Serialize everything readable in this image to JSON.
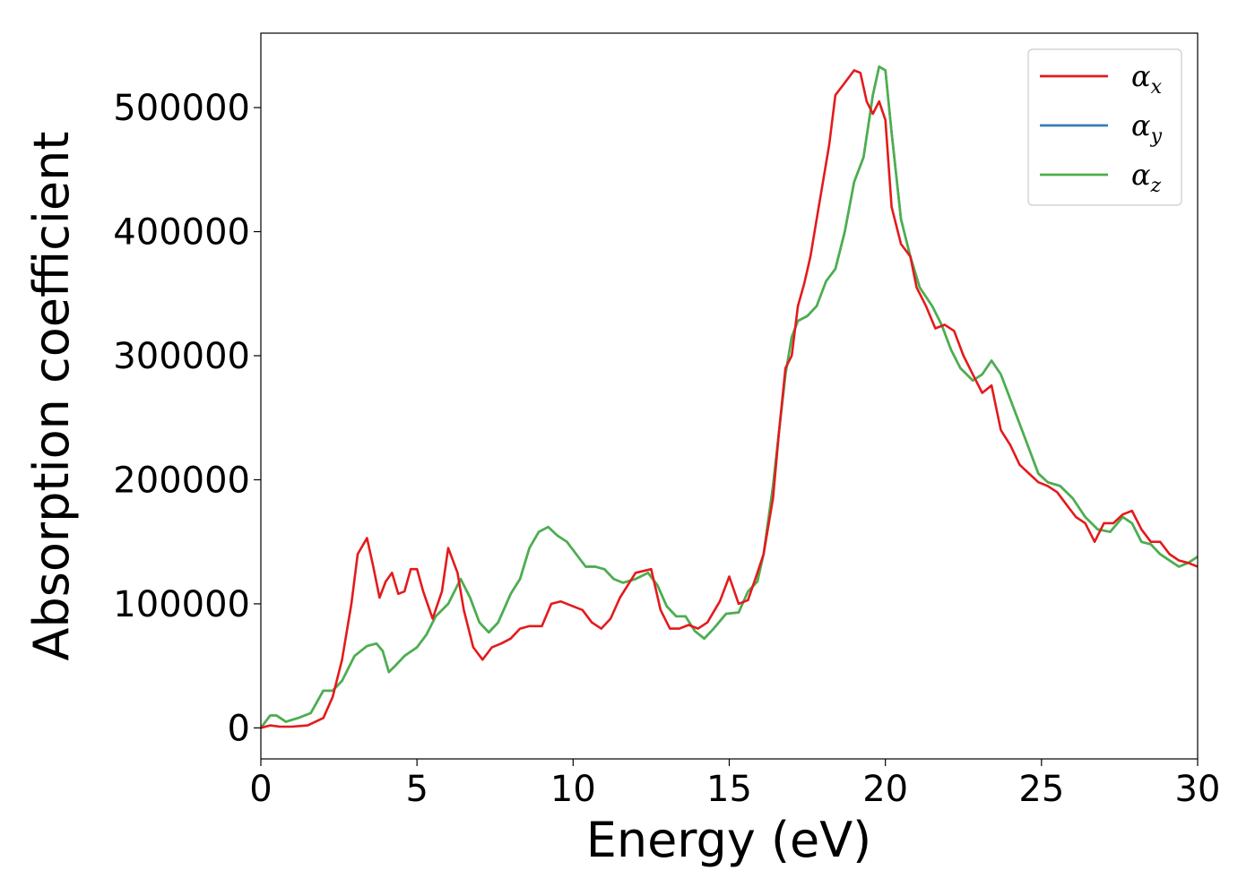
{
  "chart_data": {
    "type": "line",
    "xlabel": "Energy (eV)",
    "ylabel": "Absorption coefficient",
    "xlim": [
      0,
      30
    ],
    "ylim": [
      -25000,
      560000
    ],
    "xticks": [
      0,
      5,
      10,
      15,
      20,
      25,
      30
    ],
    "xtick_labels": [
      "0",
      "5",
      "10",
      "15",
      "20",
      "25",
      "30"
    ],
    "yticks": [
      0,
      100000,
      200000,
      300000,
      400000,
      500000
    ],
    "ytick_labels": [
      "0",
      "100000",
      "200000",
      "300000",
      "400000",
      "500000"
    ],
    "grid": false,
    "legend_position": "top-right",
    "series": [
      {
        "name": "αx",
        "symbol": "α",
        "subscript": "x",
        "color": "#e41a1c",
        "x": [
          0,
          0.3,
          0.6,
          1.0,
          1.5,
          2.0,
          2.3,
          2.6,
          2.9,
          3.1,
          3.4,
          3.6,
          3.8,
          4.0,
          4.2,
          4.4,
          4.6,
          4.8,
          5.0,
          5.2,
          5.5,
          5.8,
          6.0,
          6.3,
          6.5,
          6.8,
          7.1,
          7.4,
          7.7,
          8.0,
          8.3,
          8.6,
          9.0,
          9.3,
          9.6,
          10.0,
          10.3,
          10.6,
          10.9,
          11.2,
          11.5,
          12.0,
          12.5,
          12.8,
          13.1,
          13.4,
          13.7,
          14.0,
          14.3,
          14.7,
          15.0,
          15.3,
          15.6,
          15.9,
          16.1,
          16.4,
          16.6,
          16.8,
          17.0,
          17.2,
          17.4,
          17.6,
          17.8,
          18.0,
          18.2,
          18.4,
          18.7,
          19.0,
          19.2,
          19.4,
          19.6,
          19.8,
          20.0,
          20.2,
          20.5,
          20.8,
          21.0,
          21.3,
          21.6,
          21.9,
          22.2,
          22.5,
          22.8,
          23.1,
          23.4,
          23.7,
          24.0,
          24.3,
          24.6,
          24.9,
          25.2,
          25.5,
          25.8,
          26.1,
          26.4,
          26.7,
          27.0,
          27.3,
          27.6,
          27.9,
          28.2,
          28.5,
          28.8,
          29.1,
          29.4,
          29.7,
          30.0
        ],
        "values": [
          0,
          2000,
          1000,
          1000,
          2000,
          8000,
          25000,
          55000,
          100000,
          140000,
          153000,
          130000,
          105000,
          118000,
          125000,
          108000,
          110000,
          128000,
          128000,
          110000,
          88000,
          110000,
          145000,
          125000,
          95000,
          65000,
          55000,
          65000,
          68000,
          72000,
          80000,
          82000,
          82000,
          100000,
          102000,
          98000,
          95000,
          85000,
          80000,
          88000,
          105000,
          125000,
          128000,
          95000,
          80000,
          80000,
          83000,
          80000,
          85000,
          102000,
          122000,
          100000,
          103000,
          125000,
          140000,
          185000,
          240000,
          290000,
          300000,
          340000,
          358000,
          380000,
          410000,
          440000,
          470000,
          510000,
          520000,
          530000,
          528000,
          505000,
          495000,
          505000,
          490000,
          420000,
          390000,
          380000,
          355000,
          340000,
          322000,
          325000,
          320000,
          300000,
          285000,
          270000,
          276000,
          240000,
          228000,
          212000,
          205000,
          198000,
          195000,
          190000,
          180000,
          170000,
          165000,
          150000,
          165000,
          165000,
          172000,
          175000,
          160000,
          150000,
          150000,
          140000,
          135000,
          133000,
          130000
        ]
      },
      {
        "name": "αy",
        "symbol": "α",
        "subscript": "y",
        "color": "#377eb8",
        "x": [
          0,
          0.3,
          0.5,
          0.8,
          1.2,
          1.6,
          2.0,
          2.3,
          2.6,
          3.0,
          3.4,
          3.7,
          3.9,
          4.1,
          4.3,
          4.6,
          5.0,
          5.3,
          5.6,
          6.0,
          6.4,
          6.7,
          7.0,
          7.3,
          7.6,
          8.0,
          8.3,
          8.6,
          8.9,
          9.2,
          9.5,
          9.8,
          10.1,
          10.4,
          10.7,
          11.0,
          11.3,
          11.6,
          12.0,
          12.4,
          12.7,
          13.0,
          13.3,
          13.6,
          13.9,
          14.2,
          14.5,
          14.9,
          15.3,
          15.6,
          15.9,
          16.1,
          16.4,
          16.6,
          16.8,
          17.0,
          17.2,
          17.5,
          17.8,
          18.1,
          18.4,
          18.7,
          19.0,
          19.3,
          19.6,
          19.8,
          20.0,
          20.2,
          20.5,
          20.8,
          21.1,
          21.5,
          21.8,
          22.1,
          22.4,
          22.8,
          23.1,
          23.4,
          23.7,
          24.0,
          24.3,
          24.6,
          24.9,
          25.2,
          25.6,
          26.0,
          26.4,
          26.8,
          27.2,
          27.6,
          27.9,
          28.2,
          28.5,
          28.8,
          29.1,
          29.4,
          29.7,
          30.0
        ],
        "values": [
          0,
          10000,
          10000,
          5000,
          8000,
          12000,
          30000,
          30000,
          38000,
          58000,
          66000,
          68000,
          62000,
          45000,
          50000,
          58000,
          65000,
          75000,
          90000,
          100000,
          120000,
          105000,
          85000,
          77000,
          85000,
          108000,
          120000,
          145000,
          158000,
          162000,
          155000,
          150000,
          140000,
          130000,
          130000,
          128000,
          120000,
          117000,
          120000,
          125000,
          115000,
          98000,
          90000,
          90000,
          78000,
          72000,
          80000,
          92000,
          93000,
          110000,
          118000,
          140000,
          195000,
          240000,
          285000,
          315000,
          328000,
          332000,
          340000,
          360000,
          370000,
          400000,
          440000,
          460000,
          510000,
          533000,
          530000,
          480000,
          410000,
          380000,
          355000,
          340000,
          325000,
          305000,
          290000,
          280000,
          285000,
          296000,
          285000,
          265000,
          245000,
          225000,
          205000,
          198000,
          195000,
          185000,
          170000,
          160000,
          158000,
          170000,
          165000,
          150000,
          148000,
          140000,
          135000,
          130000,
          133000,
          138000
        ]
      },
      {
        "name": "αz",
        "symbol": "α",
        "subscript": "z",
        "color": "#4daf4a",
        "x": [
          0,
          0.3,
          0.5,
          0.8,
          1.2,
          1.6,
          2.0,
          2.3,
          2.6,
          3.0,
          3.4,
          3.7,
          3.9,
          4.1,
          4.3,
          4.6,
          5.0,
          5.3,
          5.6,
          6.0,
          6.4,
          6.7,
          7.0,
          7.3,
          7.6,
          8.0,
          8.3,
          8.6,
          8.9,
          9.2,
          9.5,
          9.8,
          10.1,
          10.4,
          10.7,
          11.0,
          11.3,
          11.6,
          12.0,
          12.4,
          12.7,
          13.0,
          13.3,
          13.6,
          13.9,
          14.2,
          14.5,
          14.9,
          15.3,
          15.6,
          15.9,
          16.1,
          16.4,
          16.6,
          16.8,
          17.0,
          17.2,
          17.5,
          17.8,
          18.1,
          18.4,
          18.7,
          19.0,
          19.3,
          19.6,
          19.8,
          20.0,
          20.2,
          20.5,
          20.8,
          21.1,
          21.5,
          21.8,
          22.1,
          22.4,
          22.8,
          23.1,
          23.4,
          23.7,
          24.0,
          24.3,
          24.6,
          24.9,
          25.2,
          25.6,
          26.0,
          26.4,
          26.8,
          27.2,
          27.6,
          27.9,
          28.2,
          28.5,
          28.8,
          29.1,
          29.4,
          29.7,
          30.0
        ],
        "values": [
          0,
          10000,
          10000,
          5000,
          8000,
          12000,
          30000,
          30000,
          38000,
          58000,
          66000,
          68000,
          62000,
          45000,
          50000,
          58000,
          65000,
          75000,
          90000,
          100000,
          120000,
          105000,
          85000,
          77000,
          85000,
          108000,
          120000,
          145000,
          158000,
          162000,
          155000,
          150000,
          140000,
          130000,
          130000,
          128000,
          120000,
          117000,
          120000,
          125000,
          115000,
          98000,
          90000,
          90000,
          78000,
          72000,
          80000,
          92000,
          93000,
          110000,
          118000,
          140000,
          195000,
          240000,
          285000,
          315000,
          328000,
          332000,
          340000,
          360000,
          370000,
          400000,
          440000,
          460000,
          510000,
          533000,
          530000,
          480000,
          410000,
          380000,
          355000,
          340000,
          325000,
          305000,
          290000,
          280000,
          285000,
          296000,
          285000,
          265000,
          245000,
          225000,
          205000,
          198000,
          195000,
          185000,
          170000,
          160000,
          158000,
          170000,
          165000,
          150000,
          148000,
          140000,
          135000,
          130000,
          133000,
          138000
        ]
      }
    ]
  }
}
